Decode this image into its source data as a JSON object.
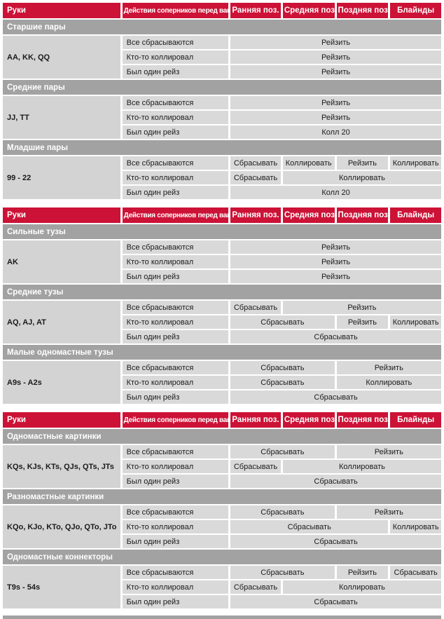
{
  "colors": {
    "header_red": "#cc1236",
    "section_gray": "#a2a2a2",
    "hand_cell_gray": "#d3d3d3",
    "cell_gray": "#d9d9d9",
    "page_background": "#ffffff"
  },
  "columns": [
    "Руки",
    "Действия соперников перед вами",
    "Ранняя поз.",
    "Средняя поз.",
    "Поздняя поз.",
    "Блайнды"
  ],
  "tables": [
    {
      "sections": [
        {
          "title": "Старшие пары",
          "hand": "AA, KK, QQ",
          "rows": [
            {
              "action": "Все сбрасываются",
              "cells": [
                {
                  "label": "Рейзить",
                  "span": 4
                }
              ]
            },
            {
              "action": "Кто-то коллировал",
              "cells": [
                {
                  "label": "Рейзить",
                  "span": 4
                }
              ]
            },
            {
              "action": "Был один рейз",
              "cells": [
                {
                  "label": "Рейзить",
                  "span": 4
                }
              ]
            }
          ]
        },
        {
          "title": "Средние пары",
          "hand": "JJ, TT",
          "rows": [
            {
              "action": "Все сбрасываются",
              "cells": [
                {
                  "label": "Рейзить",
                  "span": 4
                }
              ]
            },
            {
              "action": "Кто-то коллировал",
              "cells": [
                {
                  "label": "Рейзить",
                  "span": 4
                }
              ]
            },
            {
              "action": "Был один рейз",
              "cells": [
                {
                  "label": "Колл 20",
                  "span": 4
                }
              ]
            }
          ]
        },
        {
          "title": "Младшие пары",
          "hand": "99 - 22",
          "rows": [
            {
              "action": "Все сбрасываются",
              "cells": [
                {
                  "label": "Сбрасывать",
                  "span": 1
                },
                {
                  "label": "Коллировать",
                  "span": 1
                },
                {
                  "label": "Рейзить",
                  "span": 1
                },
                {
                  "label": "Коллировать",
                  "span": 1
                }
              ]
            },
            {
              "action": "Кто-то коллировал",
              "cells": [
                {
                  "label": "Сбрасывать",
                  "span": 1
                },
                {
                  "label": "Коллировать",
                  "span": 3
                }
              ]
            },
            {
              "action": "Был один рейз",
              "cells": [
                {
                  "label": "Колл 20",
                  "span": 4
                }
              ]
            }
          ]
        }
      ]
    },
    {
      "sections": [
        {
          "title": "Сильные тузы",
          "hand": "AK",
          "rows": [
            {
              "action": "Все сбрасываются",
              "cells": [
                {
                  "label": "Рейзить",
                  "span": 4
                }
              ]
            },
            {
              "action": "Кто-то коллировал",
              "cells": [
                {
                  "label": "Рейзить",
                  "span": 4
                }
              ]
            },
            {
              "action": "Был один рейз",
              "cells": [
                {
                  "label": "Рейзить",
                  "span": 4
                }
              ]
            }
          ]
        },
        {
          "title": "Средние тузы",
          "hand": "AQ, AJ, AT",
          "rows": [
            {
              "action": "Все сбрасываются",
              "cells": [
                {
                  "label": "Сбрасывать",
                  "span": 1
                },
                {
                  "label": "Рейзить",
                  "span": 3
                }
              ]
            },
            {
              "action": "Кто-то коллировал",
              "cells": [
                {
                  "label": "Сбрасывать",
                  "span": 2
                },
                {
                  "label": "Рейзить",
                  "span": 1
                },
                {
                  "label": "Коллировать",
                  "span": 1
                }
              ]
            },
            {
              "action": "Был один рейз",
              "cells": [
                {
                  "label": "Сбрасывать",
                  "span": 4
                }
              ]
            }
          ]
        },
        {
          "title": "Малые одномастные тузы",
          "hand": "A9s - A2s",
          "rows": [
            {
              "action": "Все сбрасываются",
              "cells": [
                {
                  "label": "Сбрасывать",
                  "span": 2
                },
                {
                  "label": "Рейзить",
                  "span": 2
                }
              ]
            },
            {
              "action": "Кто-то коллировал",
              "cells": [
                {
                  "label": "Сбрасывать",
                  "span": 2
                },
                {
                  "label": "Коллировать",
                  "span": 2
                }
              ]
            },
            {
              "action": "Был один рейз",
              "cells": [
                {
                  "label": "Сбрасывать",
                  "span": 4
                }
              ]
            }
          ]
        }
      ]
    },
    {
      "sections": [
        {
          "title": "Одномастные картинки",
          "hand": "KQs, KJs, KTs, QJs, QTs, JTs",
          "rows": [
            {
              "action": "Все сбрасываются",
              "cells": [
                {
                  "label": "Сбрасывать",
                  "span": 2
                },
                {
                  "label": "Рейзить",
                  "span": 2
                }
              ]
            },
            {
              "action": "Кто-то коллировал",
              "cells": [
                {
                  "label": "Сбрасывать",
                  "span": 1
                },
                {
                  "label": "Коллировать",
                  "span": 3
                }
              ]
            },
            {
              "action": "Был один рейз",
              "cells": [
                {
                  "label": "Сбрасывать",
                  "span": 4
                }
              ]
            }
          ]
        },
        {
          "title": "Разномастные картинки",
          "hand": "KQo, KJo, KTo, QJo, QTo, JTo",
          "rows": [
            {
              "action": "Все сбрасываются",
              "cells": [
                {
                  "label": "Сбрасывать",
                  "span": 2
                },
                {
                  "label": "Рейзить",
                  "span": 2
                }
              ]
            },
            {
              "action": "Кто-то коллировал",
              "cells": [
                {
                  "label": "Сбрасывать",
                  "span": 3
                },
                {
                  "label": "Коллировать",
                  "span": 1
                }
              ]
            },
            {
              "action": "Был один рейз",
              "cells": [
                {
                  "label": "Сбрасывать",
                  "span": 4
                }
              ]
            }
          ]
        },
        {
          "title": "Одномастные коннекторы",
          "hand": "T9s - 54s",
          "rows": [
            {
              "action": "Все сбрасываются",
              "cells": [
                {
                  "label": "Сбрасывать",
                  "span": 2
                },
                {
                  "label": "Рейзить",
                  "span": 1
                },
                {
                  "label": "Сбрасывать",
                  "span": 1
                }
              ]
            },
            {
              "action": "Кто-то коллировал",
              "cells": [
                {
                  "label": "Сбрасывать",
                  "span": 1
                },
                {
                  "label": "Коллировать",
                  "span": 3
                }
              ]
            },
            {
              "action": "Был один рейз",
              "cells": [
                {
                  "label": "Сбрасывать",
                  "span": 4
                }
              ]
            }
          ]
        }
      ]
    }
  ]
}
